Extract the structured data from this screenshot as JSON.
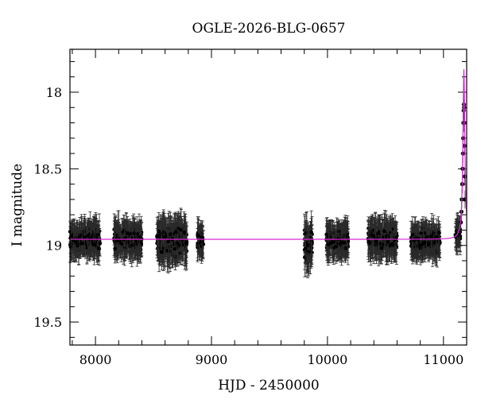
{
  "chart_data": {
    "type": "scatter",
    "title": "OGLE-2026-BLG-0657",
    "xlabel": "HJD - 2450000",
    "ylabel": "I magnitude",
    "xlim": [
      7780,
      11200
    ],
    "ylim": [
      19.65,
      17.72
    ],
    "y_inverted": true,
    "xticks": [
      8000,
      9000,
      10000,
      11000
    ],
    "yticks": [
      18,
      18.5,
      19,
      19.5
    ],
    "xtick_labels": [
      "8000",
      "9000",
      "10000",
      "11000"
    ],
    "ytick_labels": [
      "18",
      "18.5",
      "19",
      "19.5"
    ],
    "grid": false,
    "legend": "none",
    "colors": {
      "data": "#000000",
      "error_bars": "#2a2a2a",
      "model": "#d62bd6"
    },
    "series": [
      {
        "kind": "observed photometry (points with error bars)",
        "segments": [
          {
            "x_range": [
              7780,
              8040
            ],
            "mag": 18.96,
            "scatter": 0.06,
            "err": 0.1
          },
          {
            "x_range": [
              8160,
              8400
            ],
            "mag": 18.96,
            "scatter": 0.06,
            "err": 0.1
          },
          {
            "x_range": [
              8530,
              8790
            ],
            "mag": 18.97,
            "scatter": 0.07,
            "err": 0.12
          },
          {
            "x_range": [
              8880,
              8930
            ],
            "mag": 18.97,
            "scatter": 0.05,
            "err": 0.1
          },
          {
            "x_range": [
              9800,
              9870
            ],
            "mag": 19.0,
            "scatter": 0.1,
            "err": 0.12
          },
          {
            "x_range": [
              9990,
              10180
            ],
            "mag": 18.97,
            "scatter": 0.05,
            "err": 0.1
          },
          {
            "x_range": [
              10350,
              10600
            ],
            "mag": 18.96,
            "scatter": 0.06,
            "err": 0.11
          },
          {
            "x_range": [
              10720,
              10970
            ],
            "mag": 18.97,
            "scatter": 0.05,
            "err": 0.1
          },
          {
            "x_range": [
              11100,
              11145
            ],
            "mag": 18.93,
            "scatter": 0.04,
            "err": 0.09
          }
        ],
        "event_points": [
          [
            11150,
            18.85
          ],
          [
            11155,
            18.78
          ],
          [
            11158,
            18.7
          ],
          [
            11162,
            18.6
          ],
          [
            11165,
            18.5
          ],
          [
            11168,
            18.4
          ],
          [
            11170,
            18.3
          ],
          [
            11172,
            18.2
          ],
          [
            11174,
            18.12
          ],
          [
            11176,
            18.08
          ],
          [
            11178,
            18.1
          ],
          [
            11180,
            18.2
          ],
          [
            11182,
            18.35
          ],
          [
            11184,
            18.55
          ],
          [
            11186,
            18.7
          ]
        ]
      },
      {
        "kind": "model curve",
        "baseline_mag": 18.96,
        "peak_x": 11176,
        "peak_mag": 17.85,
        "width_days": 10
      }
    ]
  }
}
